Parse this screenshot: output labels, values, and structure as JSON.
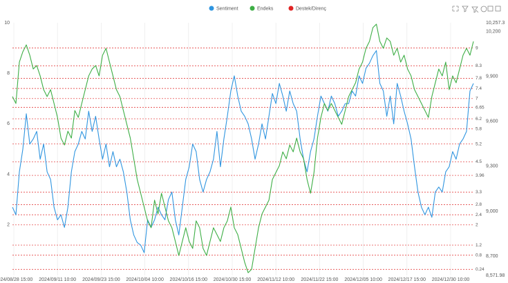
{
  "chart_data": {
    "type": "line",
    "x_labels": [
      "2024/08/28 15:00",
      "2024/09/11 10:00",
      "2024/09/23 15:00",
      "2024/10/04 10:00",
      "2024/10/16 15:00",
      "2024/10/30 15:00",
      "2024/11/12 10:00",
      "2024/11/22 15:00",
      "2024/12/05 10:00",
      "2024/12/17 15:00",
      "2024/12/30 10:00"
    ],
    "ylim": [
      0,
      10
    ],
    "yticks": [
      2,
      4,
      6,
      8,
      10
    ],
    "y2lim": [
      8571.98,
      10257.3
    ],
    "y2ticks": [
      {
        "value": 8571.98,
        "label": "8,571.98"
      },
      {
        "value": 8700,
        "label": "8,700"
      },
      {
        "value": 9000,
        "label": "9,000"
      },
      {
        "value": 9300,
        "label": "9,300"
      },
      {
        "value": 9600,
        "label": "9,600"
      },
      {
        "value": 9900,
        "label": "9,900"
      },
      {
        "value": 10200,
        "label": "10,200"
      },
      {
        "value": 10257.3,
        "label": "10,257.3"
      }
    ],
    "series": [
      {
        "name": "Sentiment",
        "color": "#2f95e0",
        "axis": "y",
        "values": [
          2.7,
          2.4,
          4.1,
          5.0,
          6.4,
          5.2,
          5.4,
          5.7,
          4.6,
          5.2,
          4.1,
          3.8,
          2.7,
          2.2,
          2.4,
          1.9,
          2.7,
          4.1,
          4.9,
          5.2,
          5.7,
          5.4,
          6.5,
          5.7,
          6.3,
          5.4,
          4.6,
          5.2,
          4.3,
          4.9,
          4.3,
          4.6,
          4.1,
          3.3,
          2.2,
          1.6,
          1.3,
          1.2,
          0.9,
          2.2,
          1.9,
          2.2,
          2.7,
          2.4,
          2.2,
          3.0,
          3.3,
          2.2,
          1.6,
          2.7,
          3.8,
          4.3,
          5.2,
          4.9,
          3.8,
          3.3,
          3.8,
          4.1,
          4.6,
          5.7,
          4.3,
          5.4,
          6.3,
          7.3,
          7.9,
          7.1,
          6.5,
          6.3,
          6.0,
          5.4,
          4.6,
          5.2,
          6.0,
          5.4,
          6.3,
          7.2,
          6.8,
          7.6,
          7.1,
          6.5,
          7.3,
          6.8,
          6.5,
          5.4,
          4.6,
          4.1,
          4.9,
          5.4,
          6.3,
          7.1,
          6.8,
          6.5,
          7.1,
          6.8,
          6.3,
          6.5,
          6.8,
          6.8,
          7.3,
          7.1,
          7.9,
          7.6,
          8.2,
          8.4,
          8.7,
          8.9,
          7.6,
          7.3,
          6.3,
          7.1,
          6.0,
          7.6,
          7.1,
          6.5,
          6.0,
          5.4,
          4.3,
          3.3,
          2.7,
          2.4,
          2.7,
          2.3,
          3.3,
          3.5,
          3.3,
          4.1,
          4.3,
          4.9,
          4.6,
          5.2,
          5.4,
          5.7,
          7.3,
          7.6
        ]
      },
      {
        "name": "Endeks",
        "color": "#3dae45",
        "axis": "y2",
        "values": [
          9765,
          9719,
          9995,
          10064,
          10110,
          10041,
          9949,
          9972,
          9903,
          9811,
          9765,
          9811,
          9719,
          9626,
          9488,
          9442,
          9534,
          9488,
          9672,
          9626,
          9719,
          9811,
          9903,
          9949,
          9972,
          9903,
          10041,
          10087,
          9995,
          9903,
          9811,
          9765,
          9672,
          9580,
          9488,
          9350,
          9212,
          9120,
          9028,
          8936,
          8890,
          9074,
          8982,
          9120,
          9028,
          8936,
          8890,
          8798,
          8705,
          8798,
          8890,
          8798,
          8752,
          8936,
          8890,
          8752,
          8705,
          8798,
          8890,
          8844,
          8798,
          8890,
          8936,
          9028,
          8890,
          8844,
          8752,
          8659,
          8590,
          8613,
          8752,
          8890,
          8982,
          9028,
          9074,
          9212,
          9258,
          9304,
          9396,
          9350,
          9442,
          9396,
          9488,
          9396,
          9350,
          9212,
          9120,
          9258,
          9488,
          9626,
          9719,
          9672,
          9719,
          9672,
          9626,
          9580,
          9672,
          9765,
          9811,
          9857,
          9949,
          9995,
          10087,
          10133,
          10225,
          10248,
          10133,
          10087,
          10156,
          10133,
          10041,
          10087,
          9995,
          10041,
          9949,
          9903,
          9811,
          9765,
          9719,
          9672,
          9626,
          9765,
          9857,
          9949,
          9903,
          9995,
          9811,
          9903,
          9857,
          9949,
          10041,
          10087,
          10041,
          10133
        ]
      }
    ],
    "levels": {
      "name": "Destek/Direnç",
      "color": "#e02424",
      "values": [
        9,
        8.3,
        7.8,
        7.4,
        7,
        6.65,
        6.2,
        5.8,
        5.2,
        4.5,
        3.96,
        3.3,
        2.8,
        2.4,
        2,
        1.2,
        0.8,
        0.24
      ]
    }
  }
}
